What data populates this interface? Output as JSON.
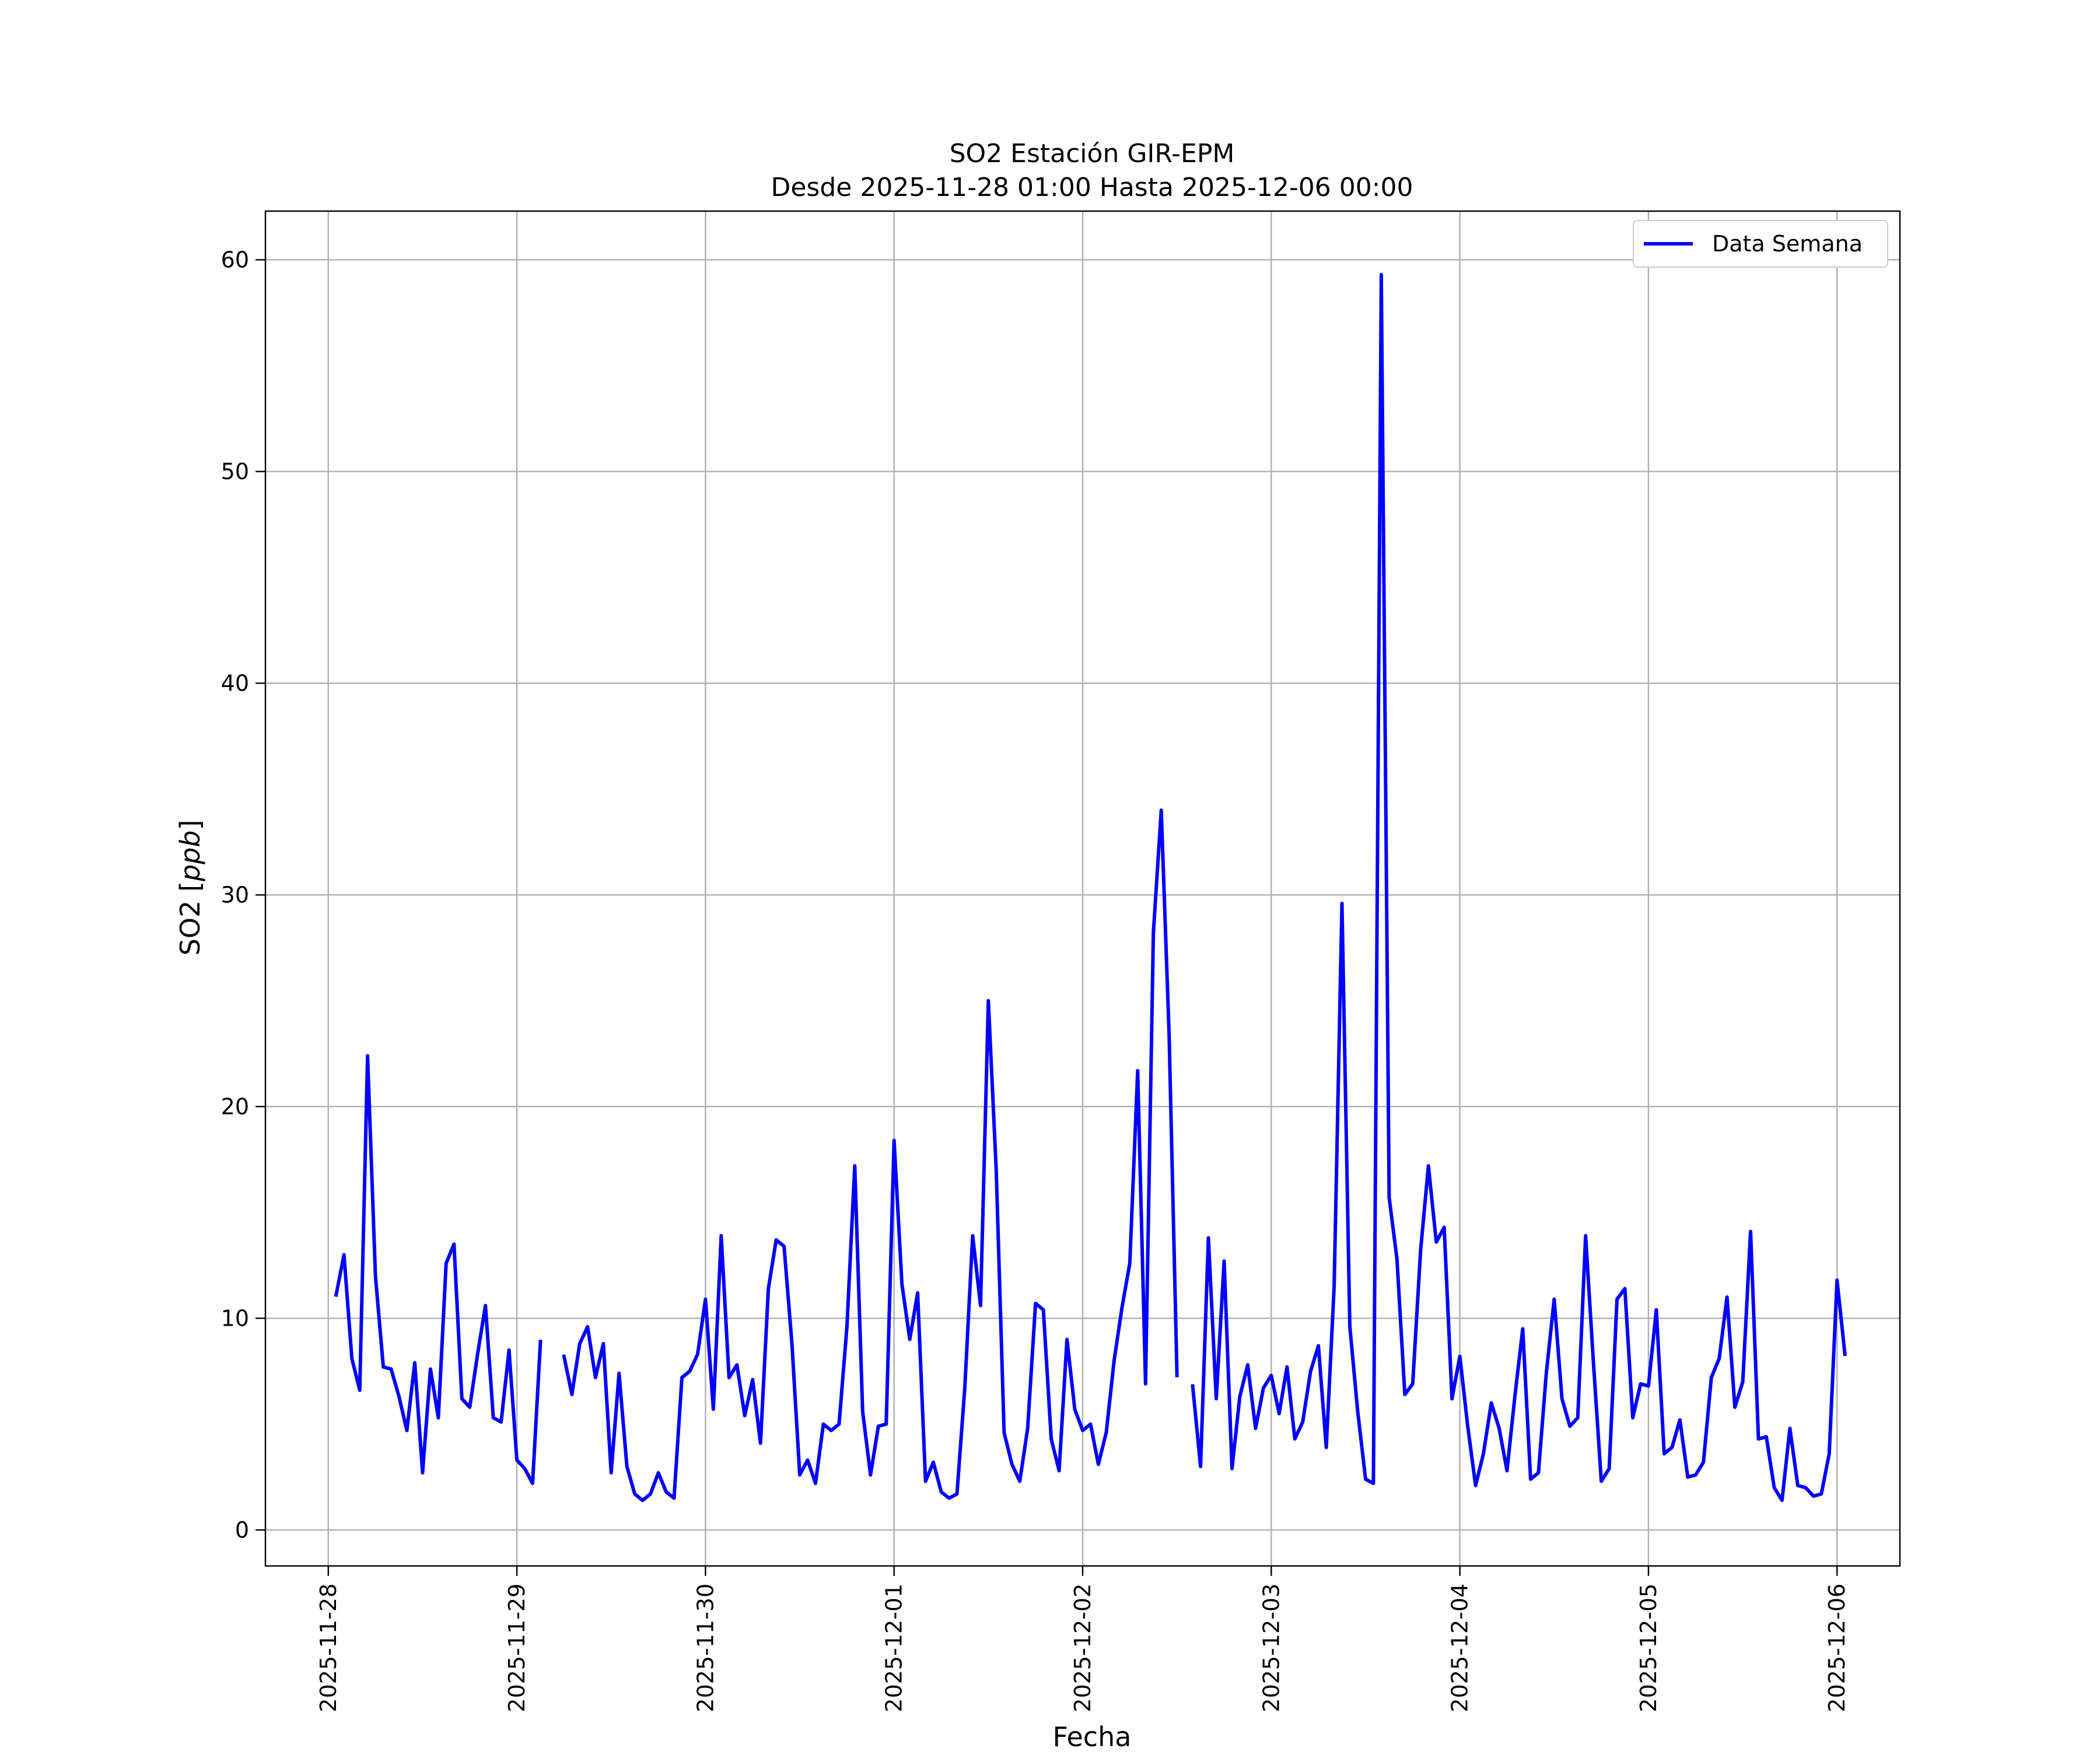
{
  "chart_data": {
    "type": "line",
    "title": "SO2 Estación GIR-EPM",
    "subtitle": "Desde 2025-11-28 01:00 Hasta 2025-12-06 00:00",
    "xlabel": "Fecha",
    "ylabel": "SO2 [ppb]",
    "ylabel_parts": {
      "prefix": "SO2 [",
      "unit": "ppb",
      "suffix": "]"
    },
    "xlim": [
      "2025-11-27 16:00",
      "2025-12-06 08:00"
    ],
    "ylim": [
      -1.7,
      62.3
    ],
    "x_ticks": [
      "2025-11-28",
      "2025-11-29",
      "2025-11-30",
      "2025-12-01",
      "2025-12-02",
      "2025-12-03",
      "2025-12-04",
      "2025-12-05",
      "2025-12-06"
    ],
    "y_ticks": [
      0,
      10,
      20,
      30,
      40,
      50,
      60
    ],
    "grid": true,
    "legend_position": "top-right",
    "series": [
      {
        "name": "Data Semana",
        "color": "#0000ff",
        "x_start": "2025-11-28 01:00",
        "x_step_hours": 1,
        "values": [
          11.1,
          13.0,
          8.1,
          6.6,
          22.4,
          12.0,
          7.7,
          7.6,
          6.3,
          4.7,
          7.9,
          2.7,
          7.6,
          5.3,
          12.6,
          13.5,
          6.2,
          5.8,
          8.3,
          10.6,
          5.3,
          5.1,
          8.5,
          3.3,
          2.9,
          2.2,
          8.9,
          null,
          null,
          8.2,
          6.4,
          8.8,
          9.6,
          7.2,
          8.8,
          2.7,
          7.4,
          3.0,
          1.7,
          1.4,
          1.7,
          2.7,
          1.8,
          1.5,
          7.2,
          7.5,
          8.3,
          10.9,
          5.7,
          13.9,
          7.2,
          7.8,
          5.4,
          7.1,
          4.1,
          11.4,
          13.7,
          13.4,
          8.8,
          2.6,
          3.3,
          2.2,
          5.0,
          4.7,
          5.0,
          9.6,
          17.2,
          5.6,
          2.6,
          4.9,
          5.0,
          18.4,
          11.6,
          9.0,
          11.2,
          2.3,
          3.2,
          1.8,
          1.5,
          1.7,
          6.7,
          13.9,
          10.6,
          25.0,
          17.0,
          4.6,
          3.1,
          2.3,
          4.8,
          10.7,
          10.4,
          4.3,
          2.8,
          9.0,
          5.7,
          4.7,
          5.0,
          3.1,
          4.6,
          8.0,
          10.5,
          12.6,
          21.7,
          6.9,
          28.2,
          34.0,
          23.4,
          7.3,
          null,
          6.8,
          3.0,
          13.8,
          6.2,
          12.7,
          2.9,
          6.3,
          7.8,
          4.8,
          6.7,
          7.3,
          5.5,
          7.7,
          4.3,
          5.1,
          7.5,
          8.7,
          3.9,
          11.5,
          29.6,
          9.6,
          5.6,
          2.4,
          2.2,
          59.3,
          15.7,
          12.8,
          6.4,
          6.9,
          13.2,
          17.2,
          13.6,
          14.3,
          6.2,
          8.2,
          4.9,
          2.1,
          3.6,
          6.0,
          4.8,
          2.8,
          6.3,
          9.5,
          2.4,
          2.7,
          7.4,
          10.9,
          6.2,
          4.9,
          5.3,
          13.9,
          7.9,
          2.3,
          2.9,
          10.9,
          11.4,
          5.3,
          6.9,
          6.8,
          10.4,
          3.6,
          3.9,
          5.2,
          2.5,
          2.6,
          3.2,
          7.2,
          8.1,
          11.0,
          5.8,
          7.0,
          14.1,
          4.3,
          4.4,
          2.0,
          1.4,
          4.8,
          2.1,
          2.0,
          1.6,
          1.7,
          3.6,
          11.8,
          8.3
        ]
      }
    ]
  }
}
